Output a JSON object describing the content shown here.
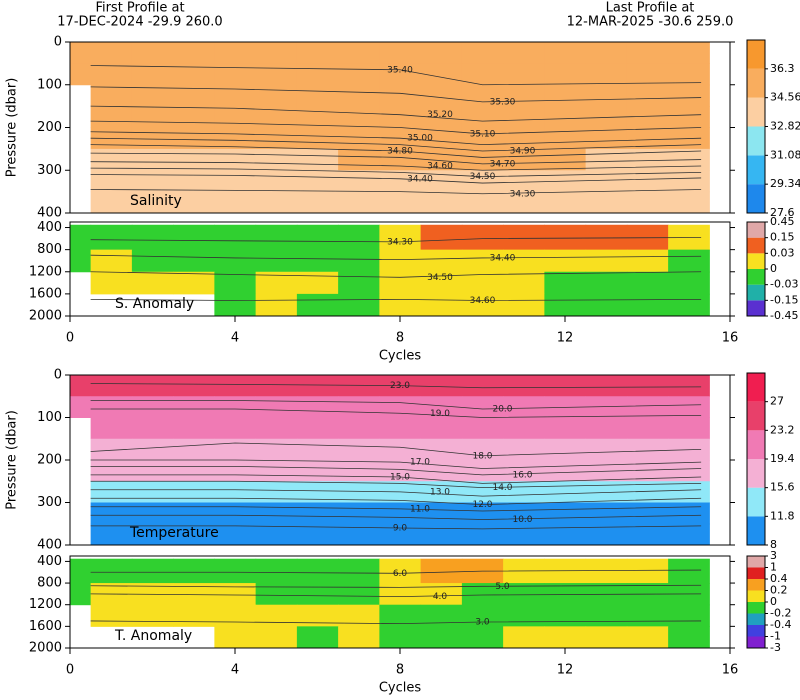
{
  "header": {
    "first_title": "First Profile at",
    "first_info": "17-DEC-2024   -29.9 260.0",
    "last_title": "Last Profile at",
    "last_info": "12-MAR-2025   -30.6 259.0"
  },
  "chart_data": [
    {
      "type": "heatmap",
      "label": "Salinity",
      "ylabel": "Pressure (dbar)",
      "xlim": [
        0,
        16
      ],
      "ylim": [
        0,
        400
      ],
      "yticks": [
        0,
        100,
        200,
        300,
        400
      ],
      "x": [
        0,
        1,
        2,
        3,
        4,
        5,
        6,
        7,
        8,
        9,
        10,
        11,
        12,
        13,
        14,
        15
      ],
      "y_bins": [
        0,
        50,
        100,
        150,
        200,
        250,
        300,
        350,
        400
      ],
      "values": [
        [
          35.6,
          35.6,
          35.6,
          35.6,
          35.6,
          35.6,
          35.6,
          35.7,
          35.8,
          35.9,
          35.9,
          35.9,
          35.9,
          35.9,
          35.9,
          35.8
        ],
        [
          35.4,
          35.4,
          35.4,
          35.4,
          35.4,
          35.4,
          35.4,
          35.5,
          35.5,
          35.6,
          35.6,
          35.6,
          35.6,
          35.6,
          35.6,
          35.5
        ],
        [
          null,
          35.3,
          35.3,
          35.3,
          35.3,
          35.3,
          35.3,
          35.3,
          35.3,
          35.4,
          35.4,
          35.4,
          35.4,
          35.4,
          35.4,
          35.3
        ],
        [
          null,
          35.1,
          35.1,
          35.1,
          35.1,
          35.1,
          35.1,
          35.1,
          35.2,
          35.2,
          35.2,
          35.2,
          35.2,
          35.2,
          35.2,
          35.1
        ],
        [
          null,
          34.9,
          34.9,
          34.9,
          34.9,
          34.9,
          34.9,
          34.9,
          35.0,
          35.0,
          35.0,
          35.0,
          35.0,
          35.0,
          35.0,
          34.9
        ],
        [
          null,
          34.5,
          34.5,
          34.5,
          34.5,
          34.5,
          34.5,
          34.6,
          34.6,
          34.6,
          34.6,
          34.6,
          34.6,
          34.5,
          34.5,
          34.5
        ],
        [
          null,
          34.4,
          34.4,
          34.4,
          34.4,
          34.4,
          34.4,
          34.4,
          34.4,
          34.4,
          34.4,
          34.4,
          34.4,
          34.4,
          34.4,
          34.4
        ],
        [
          null,
          34.3,
          34.3,
          34.3,
          34.3,
          34.3,
          34.3,
          34.3,
          34.3,
          34.3,
          34.3,
          34.3,
          34.3,
          34.3,
          34.3,
          34.3
        ]
      ],
      "colorbar": {
        "ticks": [
          27.6,
          29.34,
          31.08,
          32.82,
          34.56,
          36.3
        ],
        "colors": [
          "#1e88ec",
          "#36b6f2",
          "#8ce6f0",
          "#fccfa2",
          "#f9ad5e",
          "#f7982e"
        ]
      },
      "contour_x": [
        0.5,
        4,
        8,
        10,
        15.3
      ],
      "contours": [
        {
          "level": {
            "value": 35.4,
            "label": "35.40"
          },
          "pressure": [
            55,
            60,
            65,
            100,
            95
          ]
        },
        {
          "level": {
            "value": 35.3,
            "label": "35.30"
          },
          "pressure": [
            105,
            110,
            120,
            140,
            130
          ]
        },
        {
          "level": {
            "value": 35.2,
            "label": "35.20"
          },
          "pressure": [
            150,
            155,
            170,
            185,
            170
          ]
        },
        {
          "level": {
            "value": 35.1,
            "label": "35.10"
          },
          "pressure": [
            185,
            190,
            200,
            215,
            200
          ]
        },
        {
          "level": {
            "value": 35,
            "label": "35.00"
          },
          "pressure": [
            210,
            215,
            225,
            240,
            225
          ]
        },
        {
          "level": {
            "value": 34.9,
            "label": "34.90"
          },
          "pressure": [
            225,
            230,
            240,
            255,
            240
          ]
        },
        {
          "level": {
            "value": 34.8,
            "label": "34.80"
          },
          "pressure": [
            240,
            245,
            255,
            270,
            255
          ]
        },
        {
          "level": {
            "value": 34.7,
            "label": "34.70"
          },
          "pressure": [
            260,
            262,
            270,
            285,
            275
          ]
        },
        {
          "level": {
            "value": 34.6,
            "label": "34.60"
          },
          "pressure": [
            280,
            282,
            290,
            300,
            290
          ]
        },
        {
          "level": {
            "value": 34.5,
            "label": "34.50"
          },
          "pressure": [
            295,
            297,
            305,
            315,
            305
          ]
        },
        {
          "level": {
            "value": 34.4,
            "label": "34.40"
          },
          "pressure": [
            310,
            312,
            320,
            330,
            318
          ]
        },
        {
          "level": {
            "value": 34.3,
            "label": "34.30"
          },
          "pressure": [
            345,
            347,
            350,
            355,
            345
          ]
        }
      ]
    },
    {
      "type": "heatmap",
      "label": "S. Anomaly",
      "xlabel": "Cycles",
      "xlim": [
        0,
        16
      ],
      "xticks": [
        0,
        4,
        8,
        12,
        16
      ],
      "ylim": [
        300,
        2000
      ],
      "yticks": [
        400,
        800,
        1200,
        1600,
        2000
      ],
      "x": [
        0,
        1,
        2,
        3,
        4,
        5,
        6,
        7,
        8,
        9,
        10,
        11,
        12,
        13,
        14,
        15
      ],
      "y_bins": [
        350,
        800,
        1200,
        1600,
        2000
      ],
      "values": [
        [
          -0.01,
          -0.01,
          -0.01,
          -0.01,
          -0.01,
          -0.01,
          -0.01,
          -0.01,
          0.01,
          0.05,
          0.05,
          0.05,
          0.05,
          0.05,
          0.05,
          0.01
        ],
        [
          -0.01,
          0.01,
          -0.01,
          -0.01,
          -0.01,
          -0.01,
          -0.01,
          -0.01,
          0.01,
          0.01,
          0.01,
          0.01,
          0.01,
          0.01,
          0.01,
          -0.01
        ],
        [
          null,
          0.01,
          0.01,
          0.01,
          -0.01,
          0.01,
          0.01,
          -0.01,
          0.01,
          0.01,
          0.01,
          0.01,
          -0.01,
          -0.01,
          -0.01,
          -0.01
        ],
        [
          null,
          null,
          null,
          null,
          -0.01,
          0.01,
          -0.01,
          -0.01,
          0.01,
          0.01,
          0.01,
          0.01,
          -0.01,
          -0.01,
          -0.01,
          -0.01
        ]
      ],
      "colorbar": {
        "ticks": [
          -0.45,
          -0.15,
          -0.03,
          0,
          0.03,
          0.15,
          0.45
        ],
        "colors": [
          "#5a30d0",
          "#20b0a8",
          "#30d030",
          "#f8e020",
          "#f06020",
          "#e0a8a8"
        ]
      },
      "contour_x": [
        0.5,
        4,
        8,
        10,
        15.3
      ],
      "contours": [
        {
          "level": {
            "value": 34.3,
            "label": "34.30"
          },
          "pressure": [
            620,
            640,
            660,
            600,
            580
          ]
        },
        {
          "level": {
            "value": 34.4,
            "label": "34.40"
          },
          "pressure": [
            900,
            950,
            980,
            950,
            920
          ]
        },
        {
          "level": {
            "value": 34.5,
            "label": "34.50"
          },
          "pressure": [
            1200,
            1250,
            1300,
            1250,
            1200
          ]
        },
        {
          "level": {
            "value": 34.6,
            "label": "34.60"
          },
          "pressure": [
            1700,
            1720,
            1700,
            1720,
            1700
          ]
        }
      ]
    },
    {
      "type": "heatmap",
      "label": "Temperature",
      "ylabel": "Pressure (dbar)",
      "xlim": [
        0,
        16
      ],
      "ylim": [
        0,
        400
      ],
      "yticks": [
        0,
        100,
        200,
        300,
        400
      ],
      "x": [
        0,
        1,
        2,
        3,
        4,
        5,
        6,
        7,
        8,
        9,
        10,
        11,
        12,
        13,
        14,
        15
      ],
      "y_bins": [
        0,
        50,
        100,
        150,
        200,
        250,
        300,
        350,
        400
      ],
      "values": [
        [
          23.5,
          23.5,
          23.5,
          23.5,
          23.5,
          23.5,
          23.5,
          23.5,
          23.5,
          23.5,
          23.5,
          23.5,
          23.5,
          23.5,
          25,
          25
        ],
        [
          21,
          21,
          21,
          21,
          21,
          21,
          21,
          21,
          21,
          21,
          21,
          21,
          21,
          21,
          21,
          21
        ],
        [
          null,
          19.5,
          19.5,
          19.5,
          19.5,
          19.5,
          19.5,
          19.5,
          19.5,
          19.5,
          19.5,
          19.5,
          19.5,
          19.5,
          19.5,
          19.5
        ],
        [
          null,
          18.5,
          18.5,
          18.5,
          18.5,
          18.5,
          18.5,
          18.5,
          18.5,
          18.5,
          18.5,
          18.5,
          18.5,
          18.5,
          18.5,
          18.5
        ],
        [
          null,
          16.5,
          16.5,
          16.5,
          16.5,
          16.5,
          16.5,
          16.5,
          16.5,
          17,
          17,
          16.5,
          16.5,
          16.5,
          16.5,
          16.5
        ],
        [
          null,
          14,
          14,
          14,
          14,
          14,
          14,
          14,
          14,
          14,
          14,
          14,
          14,
          14,
          14,
          14
        ],
        [
          null,
          11.5,
          11.5,
          11.5,
          11.5,
          11.5,
          11.5,
          11.5,
          11.5,
          11.5,
          11.5,
          11.5,
          11.5,
          11.5,
          11.5,
          11.5
        ],
        [
          null,
          10,
          10,
          10,
          10,
          10,
          10,
          10,
          10,
          10,
          10,
          10,
          10,
          10,
          10,
          10
        ]
      ],
      "colorbar": {
        "ticks": [
          8,
          11.8,
          15.6,
          19.4,
          23.2,
          27
        ],
        "colors": [
          "#1e90f0",
          "#90e8f8",
          "#f4b0d4",
          "#f07ab4",
          "#e8406a",
          "#f01e50"
        ]
      },
      "contour_x": [
        0.5,
        4,
        8,
        10,
        15.3
      ],
      "contours": [
        {
          "level": {
            "value": 23,
            "label": "23.0"
          },
          "pressure": [
            20,
            22,
            25,
            30,
            28
          ]
        },
        {
          "level": {
            "value": 20,
            "label": "20.0"
          },
          "pressure": [
            60,
            60,
            65,
            80,
            70
          ]
        },
        {
          "level": {
            "value": 19,
            "label": "19.0"
          },
          "pressure": [
            80,
            80,
            90,
            100,
            95
          ]
        },
        {
          "level": {
            "value": 18,
            "label": "18.0"
          },
          "pressure": [
            180,
            160,
            170,
            190,
            175
          ]
        },
        {
          "level": {
            "value": 17,
            "label": "17.0"
          },
          "pressure": [
            200,
            200,
            205,
            220,
            205
          ]
        },
        {
          "level": {
            "value": 16,
            "label": "16.0"
          },
          "pressure": [
            215,
            215,
            222,
            235,
            220
          ]
        },
        {
          "level": {
            "value": 15,
            "label": "15.0"
          },
          "pressure": [
            235,
            235,
            240,
            255,
            240
          ]
        },
        {
          "level": {
            "value": 14,
            "label": "14.0"
          },
          "pressure": [
            250,
            250,
            255,
            265,
            255
          ]
        },
        {
          "level": {
            "value": 13,
            "label": "13.0"
          },
          "pressure": [
            270,
            270,
            275,
            285,
            270
          ]
        },
        {
          "level": {
            "value": 12,
            "label": "12.0"
          },
          "pressure": [
            290,
            290,
            295,
            305,
            290
          ]
        },
        {
          "level": {
            "value": 11,
            "label": "11.0"
          },
          "pressure": [
            310,
            310,
            315,
            320,
            310
          ]
        },
        {
          "level": {
            "value": 10,
            "label": "10.0"
          },
          "pressure": [
            330,
            330,
            335,
            340,
            330
          ]
        },
        {
          "level": {
            "value": 9,
            "label": "9.0"
          },
          "pressure": [
            355,
            355,
            360,
            362,
            355
          ]
        }
      ]
    },
    {
      "type": "heatmap",
      "label": "T. Anomaly",
      "xlabel": "Cycles",
      "xlim": [
        0,
        16
      ],
      "xticks": [
        0,
        4,
        8,
        12,
        16
      ],
      "ylim": [
        300,
        2000
      ],
      "yticks": [
        400,
        800,
        1200,
        1600,
        2000
      ],
      "x": [
        0,
        1,
        2,
        3,
        4,
        5,
        6,
        7,
        8,
        9,
        10,
        11,
        12,
        13,
        14,
        15
      ],
      "y_bins": [
        350,
        800,
        1200,
        1600,
        2000
      ],
      "values": [
        [
          -0.1,
          -0.1,
          -0.1,
          -0.1,
          -0.1,
          -0.1,
          -0.1,
          -0.1,
          0.1,
          0.3,
          0.3,
          0.1,
          0.1,
          0.1,
          0.1,
          -0.1
        ],
        [
          -0.1,
          0.1,
          0.1,
          0.1,
          0.1,
          -0.1,
          -0.1,
          -0.1,
          0.1,
          0.1,
          -0.1,
          -0.1,
          -0.1,
          -0.1,
          -0.1,
          -0.1
        ],
        [
          null,
          0.1,
          0.1,
          0.1,
          0.1,
          0.1,
          0.1,
          0.1,
          -0.1,
          -0.1,
          -0.1,
          -0.1,
          -0.1,
          -0.1,
          -0.1,
          -0.1
        ],
        [
          null,
          null,
          null,
          null,
          0.1,
          0.1,
          -0.1,
          0.1,
          -0.1,
          -0.1,
          -0.1,
          0.1,
          0.1,
          0.1,
          0.1,
          -0.1
        ]
      ],
      "colorbar": {
        "ticks": [
          -3,
          -1,
          -0.4,
          -0.2,
          0,
          0.2,
          0.4,
          1,
          3
        ],
        "colors": [
          "#8020d0",
          "#4040e0",
          "#20a0c0",
          "#30d030",
          "#f8e020",
          "#f8a020",
          "#e02020",
          "#e0a8a8"
        ]
      },
      "contour_x": [
        0.5,
        4,
        8,
        10,
        15.3
      ],
      "contours": [
        {
          "level": {
            "value": 6,
            "label": "6.0"
          },
          "pressure": [
            600,
            600,
            620,
            580,
            560
          ]
        },
        {
          "level": {
            "value": 5,
            "label": "5.0"
          },
          "pressure": [
            850,
            870,
            880,
            860,
            840
          ]
        },
        {
          "level": {
            "value": 4,
            "label": "4.0"
          },
          "pressure": [
            1000,
            1020,
            1050,
            1020,
            1000
          ]
        },
        {
          "level": {
            "value": 3,
            "label": "3.0"
          },
          "pressure": [
            1500,
            1520,
            1550,
            1520,
            1500
          ]
        }
      ]
    }
  ]
}
